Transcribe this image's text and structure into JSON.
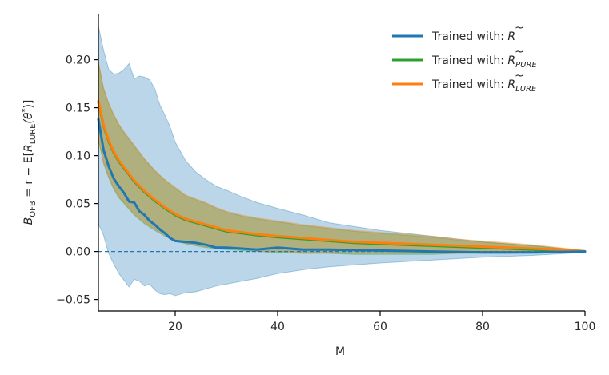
{
  "chart_data": {
    "type": "line",
    "title": "",
    "xlabel": "M",
    "ylabel": "B_OFB = r − E[R̃_LURE(θ*)]",
    "ylabel_parts": {
      "b": "B",
      "b_sub": "OFB",
      "eq": " = r − E[",
      "r": "R",
      "r_tilde": "~",
      "r_sub": "LURE",
      "theta": "(θ",
      "star": "*",
      "close": ")]"
    },
    "xlim": [
      5,
      100
    ],
    "ylim": [
      -0.062,
      0.248
    ],
    "xticks": [
      20,
      40,
      60,
      80,
      100
    ],
    "yticks": [
      -0.05,
      0.0,
      0.05,
      0.1,
      0.15,
      0.2
    ],
    "xtick_labels": [
      "20",
      "40",
      "60",
      "80",
      "100"
    ],
    "ytick_labels": [
      "−0.05",
      "0.00",
      "0.05",
      "0.10",
      "0.15",
      "0.20"
    ],
    "reference_line": {
      "y": 0.0,
      "style": "dashed",
      "color": "#1f77b4"
    },
    "legend_position": "top-right",
    "series": [
      {
        "name": "Trained with: R̃",
        "legend": {
          "prefix": "Trained with: ",
          "base": "R",
          "sub": ""
        },
        "color": "#1f77b4",
        "band_color": "#1f77b4",
        "x": [
          5,
          6,
          7,
          8,
          9,
          10,
          11,
          12,
          13,
          14,
          15,
          16,
          17,
          18,
          19,
          20,
          22,
          24,
          26,
          28,
          30,
          33,
          36,
          40,
          45,
          50,
          60,
          70,
          80,
          90,
          100
        ],
        "values": [
          0.138,
          0.106,
          0.089,
          0.076,
          0.068,
          0.061,
          0.052,
          0.051,
          0.042,
          0.038,
          0.032,
          0.028,
          0.023,
          0.019,
          0.014,
          0.011,
          0.01,
          0.009,
          0.007,
          0.004,
          0.004,
          0.003,
          0.002,
          0.004,
          0.002,
          0.002,
          0.001,
          0.0,
          -0.001,
          -0.001,
          0.0
        ],
        "lower": [
          0.029,
          0.017,
          -0.002,
          -0.013,
          -0.023,
          -0.03,
          -0.037,
          -0.029,
          -0.031,
          -0.036,
          -0.034,
          -0.04,
          -0.044,
          -0.045,
          -0.044,
          -0.046,
          -0.043,
          -0.042,
          -0.039,
          -0.036,
          -0.034,
          -0.031,
          -0.028,
          -0.023,
          -0.019,
          -0.016,
          -0.012,
          -0.009,
          -0.006,
          -0.004,
          -0.001
        ],
        "upper": [
          0.235,
          0.21,
          0.19,
          0.185,
          0.186,
          0.19,
          0.196,
          0.18,
          0.183,
          0.182,
          0.179,
          0.17,
          0.153,
          0.142,
          0.13,
          0.114,
          0.095,
          0.083,
          0.075,
          0.068,
          0.064,
          0.057,
          0.051,
          0.045,
          0.038,
          0.03,
          0.022,
          0.016,
          0.01,
          0.006,
          0.001
        ]
      },
      {
        "name": "Trained with: R̃_PURE",
        "legend": {
          "prefix": "Trained with: ",
          "base": "R",
          "sub": "PURE"
        },
        "color": "#2ca02c",
        "band_color": "#2ca02c",
        "x": [
          5,
          6,
          7,
          8,
          9,
          10,
          12,
          14,
          16,
          18,
          20,
          22,
          24,
          26,
          28,
          30,
          33,
          36,
          40,
          45,
          50,
          55,
          60,
          65,
          70,
          75,
          80,
          85,
          90,
          95,
          100
        ],
        "values": [
          0.156,
          0.131,
          0.115,
          0.103,
          0.094,
          0.087,
          0.073,
          0.062,
          0.053,
          0.045,
          0.038,
          0.033,
          0.03,
          0.027,
          0.024,
          0.021,
          0.019,
          0.017,
          0.015,
          0.013,
          0.011,
          0.009,
          0.008,
          0.007,
          0.006,
          0.005,
          0.004,
          0.003,
          0.002,
          0.001,
          0.0
        ],
        "lower": [
          0.117,
          0.092,
          0.077,
          0.065,
          0.056,
          0.05,
          0.038,
          0.029,
          0.022,
          0.016,
          0.011,
          0.008,
          0.006,
          0.004,
          0.003,
          0.002,
          0.001,
          0.0,
          -0.001,
          -0.002,
          -0.002,
          -0.003,
          -0.003,
          -0.003,
          -0.003,
          -0.002,
          -0.002,
          -0.002,
          -0.001,
          -0.001,
          -0.001
        ],
        "upper": [
          0.197,
          0.17,
          0.154,
          0.142,
          0.132,
          0.124,
          0.11,
          0.096,
          0.084,
          0.074,
          0.066,
          0.058,
          0.054,
          0.05,
          0.045,
          0.041,
          0.037,
          0.034,
          0.031,
          0.027,
          0.024,
          0.021,
          0.019,
          0.017,
          0.015,
          0.012,
          0.01,
          0.008,
          0.006,
          0.003,
          0.001
        ]
      },
      {
        "name": "Trained with: R̃_LURE",
        "legend": {
          "prefix": "Trained with: ",
          "base": "R",
          "sub": "LURE"
        },
        "color": "#ff7f0e",
        "band_color": "#ff7f0e",
        "x": [
          5,
          6,
          7,
          8,
          9,
          10,
          12,
          14,
          16,
          18,
          20,
          22,
          24,
          26,
          28,
          30,
          33,
          36,
          40,
          45,
          50,
          55,
          60,
          65,
          70,
          75,
          80,
          85,
          90,
          95,
          100
        ],
        "values": [
          0.157,
          0.132,
          0.116,
          0.104,
          0.095,
          0.088,
          0.074,
          0.063,
          0.054,
          0.046,
          0.039,
          0.034,
          0.031,
          0.028,
          0.025,
          0.022,
          0.02,
          0.018,
          0.016,
          0.014,
          0.012,
          0.01,
          0.009,
          0.008,
          0.007,
          0.006,
          0.005,
          0.004,
          0.003,
          0.002,
          0.0
        ],
        "lower": [
          0.118,
          0.093,
          0.078,
          0.066,
          0.057,
          0.051,
          0.039,
          0.03,
          0.023,
          0.017,
          0.012,
          0.009,
          0.007,
          0.005,
          0.004,
          0.003,
          0.002,
          0.001,
          0.0,
          -0.001,
          -0.001,
          -0.002,
          -0.002,
          -0.002,
          -0.002,
          -0.002,
          -0.001,
          -0.001,
          -0.001,
          -0.001,
          -0.001
        ],
        "upper": [
          0.198,
          0.171,
          0.155,
          0.143,
          0.133,
          0.125,
          0.111,
          0.097,
          0.085,
          0.075,
          0.067,
          0.059,
          0.055,
          0.051,
          0.046,
          0.042,
          0.038,
          0.035,
          0.032,
          0.028,
          0.025,
          0.022,
          0.02,
          0.018,
          0.016,
          0.013,
          0.011,
          0.009,
          0.007,
          0.004,
          0.001
        ]
      }
    ]
  }
}
